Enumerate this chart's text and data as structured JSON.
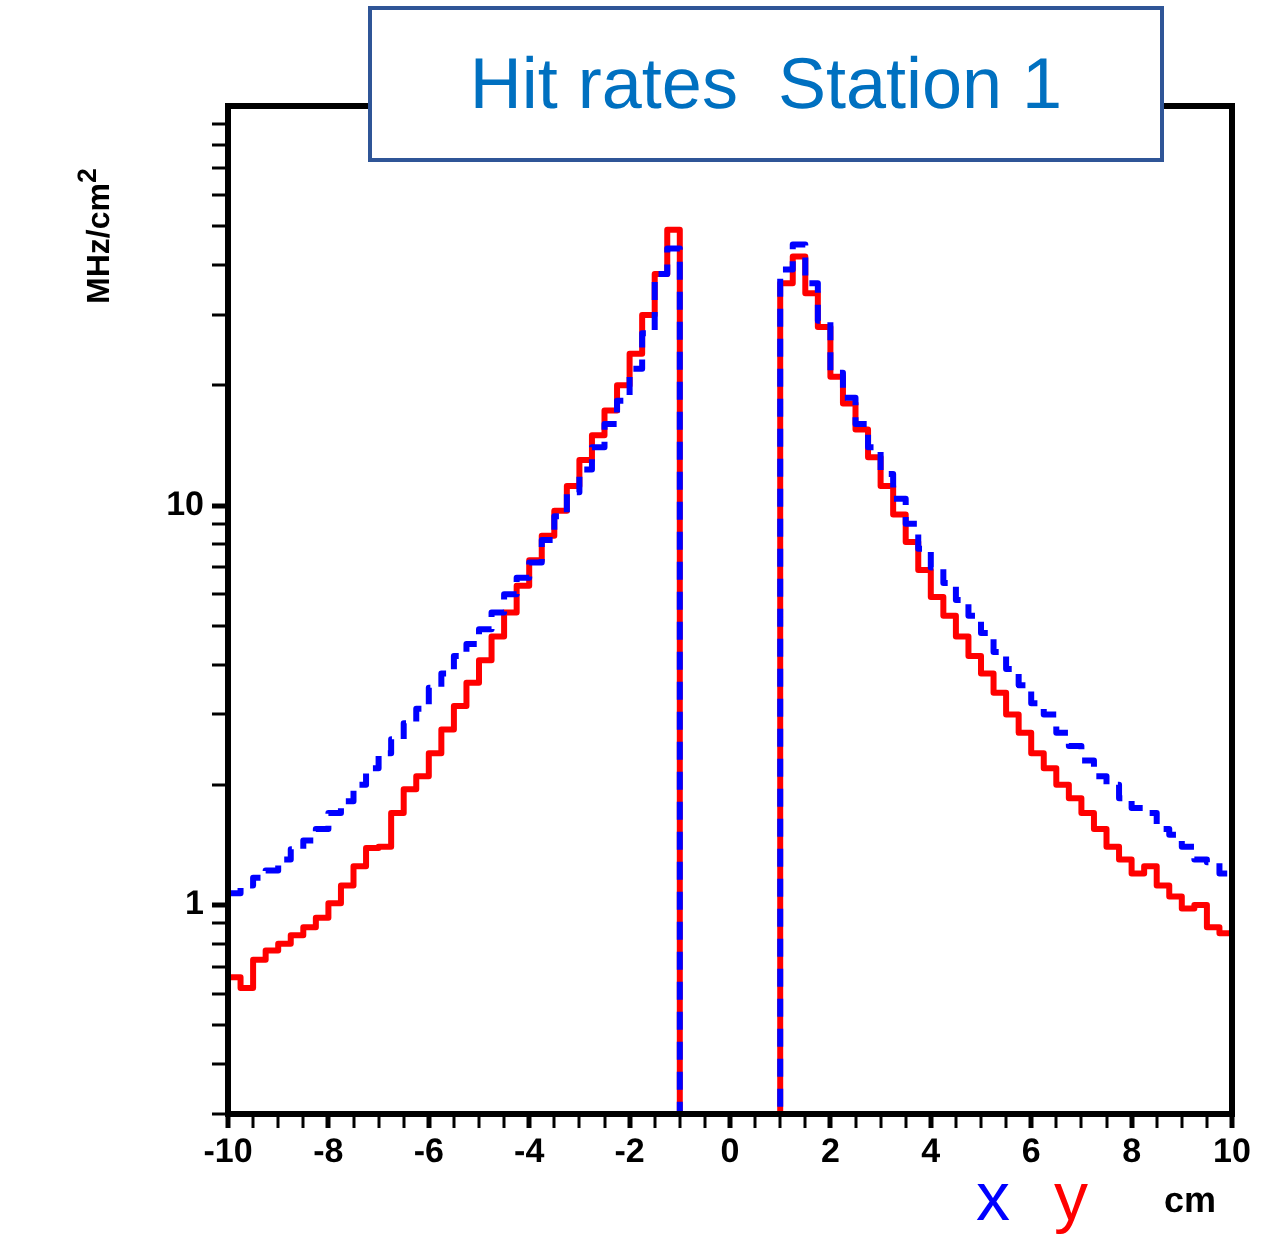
{
  "chart_data": {
    "type": "histogram",
    "title": "Hit rates  Station 1",
    "xlabel": "cm",
    "ylabel": "MHz/cm$^{2}$",
    "bins": [
      -10,
      -9.75,
      -9.5,
      -9.25,
      -9,
      -8.75,
      -8.5,
      -8.25,
      -8,
      -7.75,
      -7.5,
      -7.25,
      -7,
      -6.75,
      -6.5,
      -6.25,
      -6,
      -5.75,
      -5.5,
      -5.25,
      -5,
      -4.75,
      -4.5,
      -4.25,
      -4,
      -3.75,
      -3.5,
      -3.25,
      -3,
      -2.75,
      -2.5,
      -2.25,
      -2,
      -1.75,
      -1.5,
      -1.25,
      -1,
      -0.75,
      -0.5,
      -0.25,
      0,
      0.25,
      0.5,
      0.75,
      1,
      1.25,
      1.5,
      1.75,
      2,
      2.25,
      2.5,
      2.75,
      3,
      3.25,
      3.5,
      3.75,
      4,
      4.25,
      4.5,
      4.75,
      5,
      5.25,
      5.5,
      5.75,
      6,
      6.25,
      6.5,
      6.75,
      7,
      7.25,
      7.5,
      7.75,
      8,
      8.25,
      8.5,
      8.75,
      9,
      9.25,
      9.5,
      9.75,
      10
    ],
    "series": [
      {
        "name": "x",
        "color": "#0000ff",
        "line_style": "dashed",
        "values": [
          1.07,
          1.12,
          1.17,
          1.22,
          1.3,
          1.38,
          1.45,
          1.55,
          1.7,
          1.82,
          2,
          2.2,
          2.4,
          2.6,
          2.85,
          3.1,
          3.5,
          3.8,
          4.2,
          4.5,
          4.9,
          5.4,
          6,
          6.6,
          7.2,
          8.2,
          9.4,
          10.8,
          12.3,
          14,
          16,
          18.3,
          22,
          27,
          38,
          44,
          null,
          null,
          null,
          null,
          null,
          null,
          null,
          null,
          39,
          45,
          36,
          29,
          21.5,
          18.6,
          16,
          14,
          12,
          10.4,
          9,
          7.8,
          7,
          6.4,
          5.8,
          5.3,
          4.8,
          4.3,
          3.9,
          3.55,
          3.2,
          3,
          2.7,
          2.5,
          2.3,
          2.1,
          2,
          1.85,
          1.75,
          1.7,
          1.55,
          1.5,
          1.4,
          1.3,
          1.28,
          1.2
        ]
      },
      {
        "name": "y",
        "color": "#ff0000",
        "line_style": "solid",
        "values": [
          0.66,
          0.62,
          0.73,
          0.77,
          0.8,
          0.84,
          0.88,
          0.93,
          1.01,
          1.12,
          1.25,
          1.39,
          1.4,
          1.7,
          1.95,
          2.1,
          2.4,
          2.75,
          3.15,
          3.6,
          4.1,
          4.7,
          5.4,
          6.3,
          7.3,
          8.4,
          9.7,
          11.2,
          13,
          15,
          17.3,
          20,
          24,
          30,
          38,
          49,
          null,
          null,
          null,
          null,
          null,
          null,
          null,
          null,
          36,
          42,
          34,
          28,
          21,
          18,
          15.5,
          13.2,
          11.2,
          9.5,
          8.1,
          6.9,
          5.9,
          5.3,
          4.7,
          4.2,
          3.8,
          3.4,
          3,
          2.7,
          2.4,
          2.2,
          2,
          1.85,
          1.7,
          1.55,
          1.4,
          1.3,
          1.2,
          1.25,
          1.12,
          1.05,
          0.98,
          1,
          0.88,
          0.85
        ]
      }
    ],
    "xlim": [
      -10,
      10
    ],
    "xticks": [
      -10,
      {
        "value": -9.5,
        "label": null
      },
      {
        "value": -9,
        "label": null
      },
      {
        "value": -8.5,
        "label": null
      },
      -8,
      {
        "value": -7.5,
        "label": null
      },
      {
        "value": -7,
        "label": null
      },
      {
        "value": -6.5,
        "label": null
      },
      -6,
      {
        "value": -5.5,
        "label": null
      },
      {
        "value": -5,
        "label": null
      },
      {
        "value": -4.5,
        "label": null
      },
      -4,
      {
        "value": -3.5,
        "label": null
      },
      {
        "value": -3,
        "label": null
      },
      {
        "value": -2.5,
        "label": null
      },
      -2,
      {
        "value": -1.5,
        "label": null
      },
      {
        "value": -1,
        "label": null
      },
      {
        "value": -0.5,
        "label": null
      },
      0,
      {
        "value": 0.5,
        "label": null
      },
      {
        "value": 1,
        "label": null
      },
      {
        "value": 1.5,
        "label": null
      },
      2,
      {
        "value": 2.5,
        "label": null
      },
      {
        "value": 3,
        "label": null
      },
      {
        "value": 3.5,
        "label": null
      },
      4,
      {
        "value": 4.5,
        "label": null
      },
      {
        "value": 5,
        "label": null
      },
      {
        "value": 5.5,
        "label": null
      },
      6,
      {
        "value": 6.5,
        "label": null
      },
      {
        "value": 7,
        "label": null
      },
      {
        "value": 7.5,
        "label": null
      },
      8,
      {
        "value": 8.5,
        "label": null
      },
      {
        "value": 9,
        "label": null
      },
      {
        "value": 9.5,
        "label": null
      },
      10
    ],
    "ylim": [
      0.3,
      100
    ],
    "yticks": [
      {
        "value": 0.3,
        "label": null
      },
      {
        "value": 0.4,
        "label": null
      },
      {
        "value": 0.5,
        "label": null
      },
      {
        "value": 0.6,
        "label": null
      },
      {
        "value": 0.7,
        "label": null
      },
      {
        "value": 0.8,
        "label": null
      },
      {
        "value": 0.9,
        "label": null
      },
      1,
      {
        "value": 2,
        "label": null
      },
      {
        "value": 3,
        "label": null
      },
      {
        "value": 4,
        "label": null
      },
      {
        "value": 5,
        "label": null
      },
      {
        "value": 6,
        "label": null
      },
      {
        "value": 7,
        "label": null
      },
      {
        "value": 8,
        "label": null
      },
      {
        "value": 9,
        "label": null
      },
      10,
      {
        "value": 20,
        "label": null
      },
      {
        "value": 30,
        "label": null
      },
      {
        "value": 40,
        "label": null
      },
      {
        "value": 50,
        "label": null
      },
      {
        "value": 60,
        "label": null
      },
      {
        "value": 70,
        "label": null
      },
      {
        "value": 80,
        "label": null
      },
      {
        "value": 90,
        "label": null
      }
    ],
    "log": "y",
    "grid": false,
    "legend": "bottom right"
  }
}
